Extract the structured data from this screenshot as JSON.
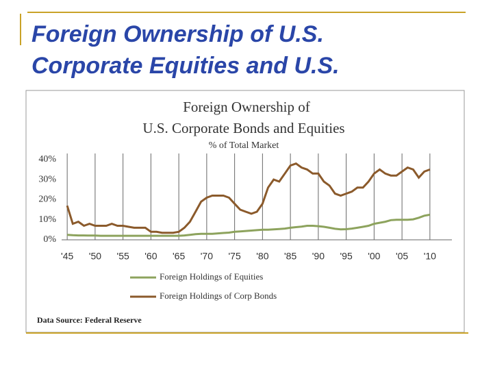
{
  "slide": {
    "title_lines": [
      "Foreign Ownership of U.S.",
      "Corporate Equities and U.S."
    ]
  },
  "chart_data": {
    "type": "line",
    "title": "Foreign Ownership of",
    "title_line2": "U.S. Corporate Bonds and Equities",
    "subtitle": "% of Total Market",
    "source": "Data Source: Federal Reserve",
    "x": [
      1945,
      1946,
      1947,
      1948,
      1949,
      1950,
      1951,
      1952,
      1953,
      1954,
      1955,
      1956,
      1957,
      1958,
      1959,
      1960,
      1961,
      1962,
      1963,
      1964,
      1965,
      1966,
      1967,
      1968,
      1969,
      1970,
      1971,
      1972,
      1973,
      1974,
      1975,
      1976,
      1977,
      1978,
      1979,
      1980,
      1981,
      1982,
      1983,
      1984,
      1985,
      1986,
      1987,
      1988,
      1989,
      1990,
      1991,
      1992,
      1993,
      1994,
      1995,
      1996,
      1997,
      1998,
      1999,
      2000,
      2001,
      2002,
      2003,
      2004,
      2005,
      2006,
      2007,
      2008,
      2009,
      2010
    ],
    "series": [
      {
        "name": "Foreign Holdings of Equities",
        "color": "#8da35d",
        "values": [
          2.5,
          2.3,
          2.2,
          2.2,
          2.1,
          2.1,
          2,
          2,
          2,
          2,
          2,
          2,
          2,
          2,
          2,
          2,
          2,
          2,
          2,
          2,
          2,
          2.2,
          2.5,
          2.8,
          3,
          3,
          3,
          3.2,
          3.4,
          3.6,
          4,
          4.2,
          4.4,
          4.6,
          4.8,
          5,
          5,
          5.2,
          5.4,
          5.6,
          6,
          6.3,
          6.6,
          7,
          7,
          6.8,
          6.5,
          6,
          5.5,
          5.2,
          5.3,
          5.6,
          6,
          6.5,
          7,
          8,
          8.5,
          9,
          9.8,
          10,
          10,
          10,
          10.2,
          11,
          12,
          12.5
        ]
      },
      {
        "name": "Foreign Holdings of Corp Bonds",
        "color": "#8b5a2b",
        "values": [
          17,
          8,
          9,
          7,
          8,
          7,
          7,
          7,
          8,
          7,
          7,
          6.5,
          6,
          6,
          6,
          4,
          4,
          3.5,
          3.5,
          3.5,
          4,
          6,
          9,
          14,
          19,
          21,
          22,
          22,
          22,
          21,
          18,
          15,
          14,
          13,
          14,
          18,
          26,
          30,
          29,
          33,
          37,
          38,
          36,
          35,
          33,
          33,
          29,
          27,
          23,
          22,
          23,
          24,
          26,
          26,
          29,
          33,
          35,
          33,
          32,
          32,
          34,
          36,
          35,
          31,
          34,
          35
        ]
      }
    ],
    "xlim": [
      1944,
      2011
    ],
    "xticks": [
      {
        "value": 1945,
        "label": "'45"
      },
      {
        "value": 1950,
        "label": "'50"
      },
      {
        "value": 1955,
        "label": "'55"
      },
      {
        "value": 1960,
        "label": "'60"
      },
      {
        "value": 1965,
        "label": "'65"
      },
      {
        "value": 1970,
        "label": "'70"
      },
      {
        "value": 1975,
        "label": "'75"
      },
      {
        "value": 1980,
        "label": "'80"
      },
      {
        "value": 1985,
        "label": "'85"
      },
      {
        "value": 1990,
        "label": "'90"
      },
      {
        "value": 1995,
        "label": "'95"
      },
      {
        "value": 2000,
        "label": "'00"
      },
      {
        "value": 2005,
        "label": "'05"
      },
      {
        "value": 2010,
        "label": "'10"
      }
    ],
    "ylim": [
      0,
      43
    ],
    "yticks": [
      {
        "value": 0,
        "label": "0%"
      },
      {
        "value": 10,
        "label": "10%"
      },
      {
        "value": 20,
        "label": "20%"
      },
      {
        "value": 30,
        "label": "30%"
      },
      {
        "value": 40,
        "label": "40%"
      }
    ],
    "grid": true
  }
}
